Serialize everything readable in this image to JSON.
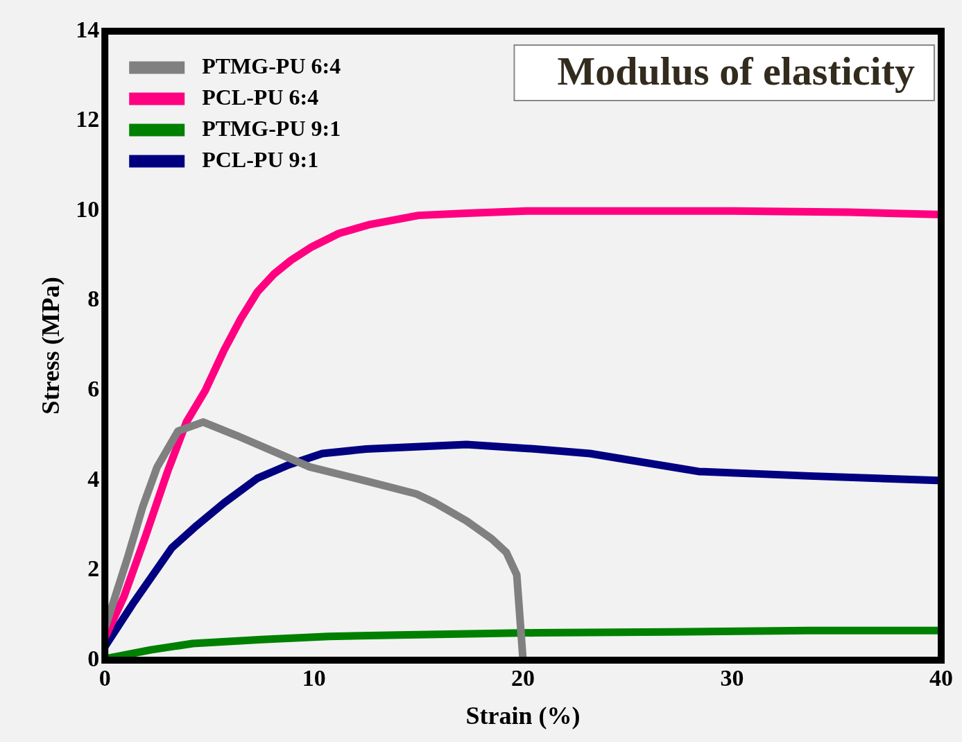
{
  "chart_data": {
    "type": "line",
    "title": "Modulus of elasticity",
    "xlabel": "Strain (%)",
    "ylabel": "Stress (MPa)",
    "xlim": [
      0,
      40
    ],
    "xticks": [
      0,
      10,
      20,
      30,
      40
    ],
    "ylim": [
      0,
      14
    ],
    "yticks": [
      0,
      2,
      4,
      6,
      8,
      10,
      12,
      14
    ],
    "grid": false,
    "legend": "top left",
    "marker": "none",
    "line_style": "solid",
    "series": [
      {
        "name": "PTMG-PU 6:4",
        "color": "#808080",
        "x": [
          0,
          1.1,
          1.8,
          2.5,
          3.5,
          4.7,
          6.3,
          9.8,
          12.4,
          14.9,
          15.8,
          17.3,
          18.5,
          19.2,
          19.7,
          20.0
        ],
        "values": [
          0.7,
          2.3,
          3.4,
          4.3,
          5.1,
          5.3,
          5.0,
          4.3,
          4.0,
          3.7,
          3.5,
          3.1,
          2.7,
          2.4,
          1.9,
          0
        ]
      },
      {
        "name": "PCL-PU 6:4",
        "color": "#ff0080",
        "x": [
          0,
          0.9,
          1.9,
          3.0,
          3.9,
          4.8,
          5.7,
          6.5,
          7.3,
          8.1,
          8.9,
          9.9,
          11.2,
          12.7,
          15.0,
          17.3,
          20.2,
          30.0,
          35.6,
          39.8
        ],
        "values": [
          0.5,
          1.4,
          2.7,
          4.2,
          5.3,
          6.0,
          6.9,
          7.6,
          8.2,
          8.6,
          8.9,
          9.2,
          9.5,
          9.7,
          9.9,
          9.95,
          10.0,
          10.0,
          9.97,
          9.92
        ]
      },
      {
        "name": "PTMG-PU 9:1",
        "color": "#008000",
        "x": [
          0,
          2.2,
          4.2,
          7.5,
          10.7,
          14.0,
          20.6,
          27.1,
          33.7,
          39.8
        ],
        "values": [
          0.03,
          0.23,
          0.37,
          0.46,
          0.53,
          0.56,
          0.61,
          0.63,
          0.66,
          0.66
        ]
      },
      {
        "name": "PCL-PU 9:1",
        "color": "#000080",
        "x": [
          0,
          1.4,
          3.2,
          4.4,
          5.7,
          7.3,
          8.8,
          10.4,
          12.5,
          17.3,
          20.6,
          23.2,
          28.4,
          33.7,
          39.8
        ],
        "values": [
          0.3,
          1.3,
          2.5,
          3.0,
          3.5,
          4.05,
          4.35,
          4.6,
          4.7,
          4.8,
          4.7,
          4.6,
          4.2,
          4.1,
          4.0
        ]
      }
    ]
  }
}
